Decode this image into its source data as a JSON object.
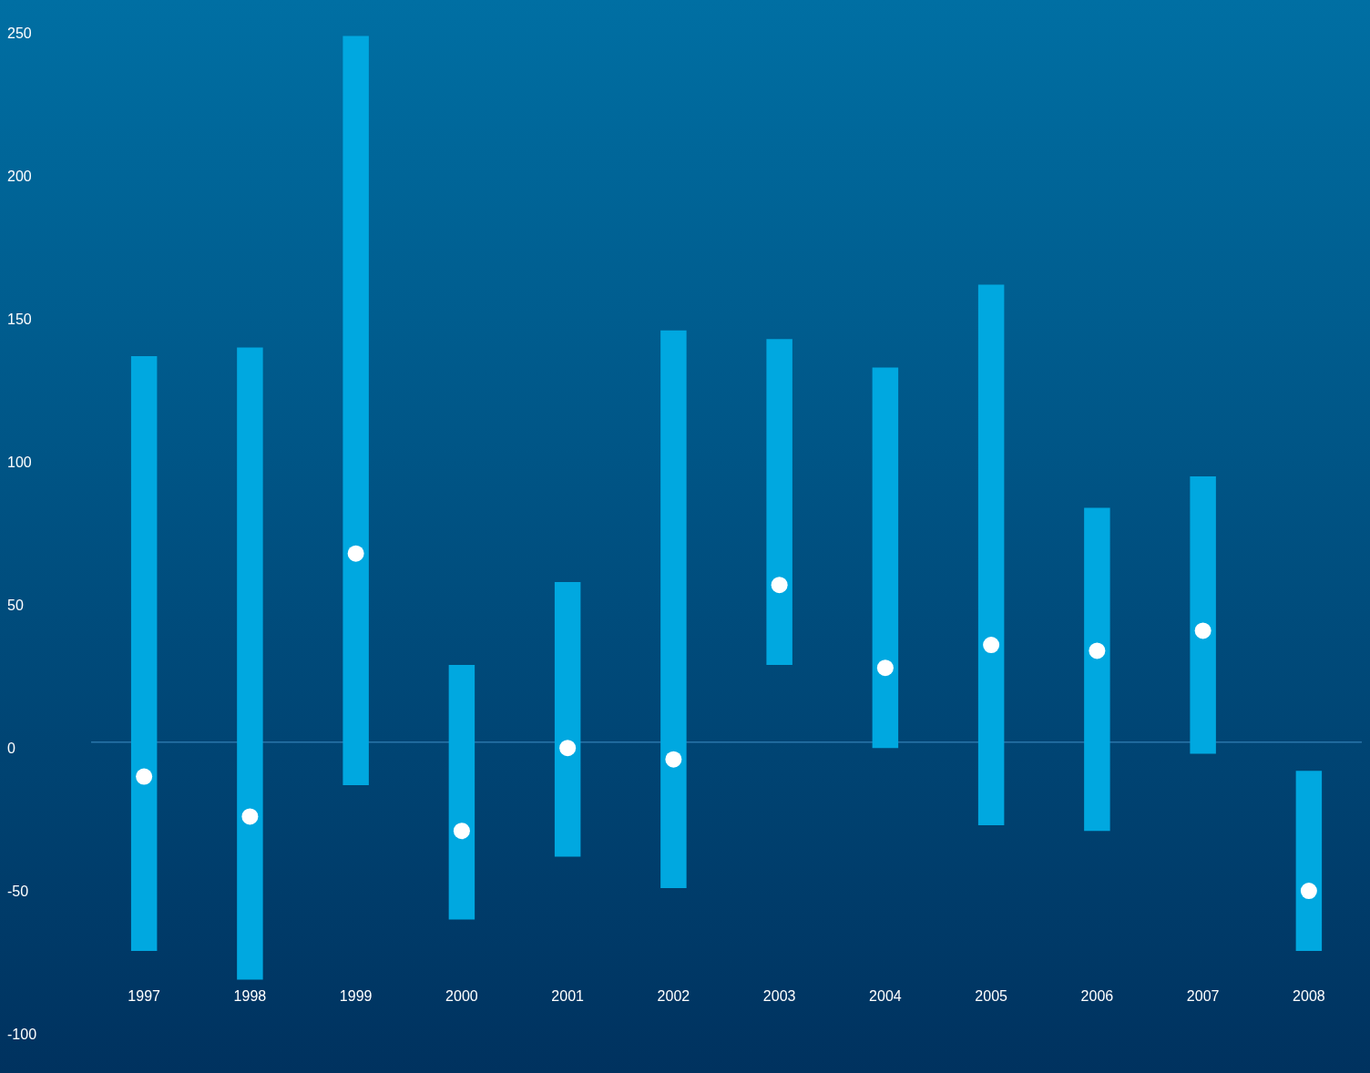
{
  "chart_data": {
    "type": "bar",
    "categories": [
      "1997",
      "1998",
      "1999",
      "2000",
      "2001",
      "2002",
      "2003",
      "2004",
      "2005",
      "2006",
      "2007",
      "2008"
    ],
    "series": [
      {
        "color": "#00a8e0",
        "base": [
          -73,
          -83,
          -15,
          -62,
          -40,
          -51,
          27,
          -2,
          -29,
          -31,
          -4,
          -73
        ],
        "values": [
          208,
          221,
          262,
          89,
          96,
          195,
          114,
          133,
          189,
          113,
          97,
          63
        ]
      },
      {
        "type": "scatter",
        "color": "#ffffff",
        "values": [
          -12,
          -26,
          66,
          -31,
          -2,
          -6,
          55,
          26,
          34,
          32,
          39,
          -52
        ],
        "marker": "circle"
      }
    ],
    "ylim": [
      -100,
      250
    ],
    "yticks": [
      -100,
      -50,
      0,
      50,
      100,
      150,
      200,
      250
    ],
    "grid": false,
    "legend": false,
    "ref_lines": [
      {
        "axis": "y",
        "value": 0,
        "color": "#3f8fc4"
      }
    ]
  }
}
